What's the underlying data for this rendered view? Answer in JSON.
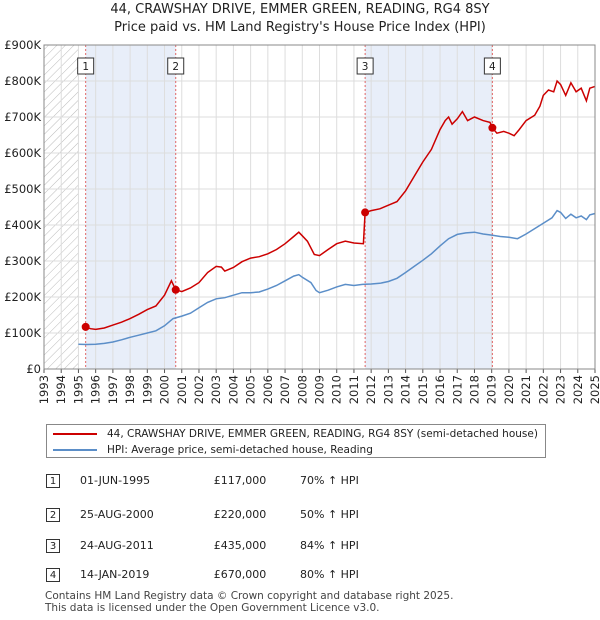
{
  "header": {
    "title": "44, CRAWSHAY DRIVE, EMMER GREEN, READING, RG4 8SY",
    "subtitle": "Price paid vs. HM Land Registry's House Price Index (HPI)"
  },
  "chart_data": {
    "type": "line",
    "title": "44, CRAWSHAY DRIVE, EMMER GREEN, READING, RG4 8SY",
    "subtitle": "Price paid vs. HM Land Registry's House Price Index (HPI)",
    "xlabel": "",
    "ylabel": "",
    "xlim": [
      1993,
      2025
    ],
    "ylim": [
      0,
      900000
    ],
    "x_ticks": [
      1993,
      1994,
      1995,
      1996,
      1997,
      1998,
      1999,
      2000,
      2001,
      2002,
      2003,
      2004,
      2005,
      2006,
      2007,
      2008,
      2009,
      2010,
      2011,
      2012,
      2013,
      2014,
      2015,
      2016,
      2017,
      2018,
      2019,
      2020,
      2021,
      2022,
      2023,
      2024,
      2025
    ],
    "y_ticks": [
      {
        "value": 0,
        "label": "£0"
      },
      {
        "value": 100000,
        "label": "£100K"
      },
      {
        "value": 200000,
        "label": "£200K"
      },
      {
        "value": 300000,
        "label": "£300K"
      },
      {
        "value": 400000,
        "label": "£400K"
      },
      {
        "value": 500000,
        "label": "£500K"
      },
      {
        "value": 600000,
        "label": "£600K"
      },
      {
        "value": 700000,
        "label": "£700K"
      },
      {
        "value": 800000,
        "label": "£800K"
      },
      {
        "value": 900000,
        "label": "£900K"
      }
    ],
    "grid": true,
    "series": [
      {
        "name": "44, CRAWSHAY DRIVE, EMMER GREEN, READING, RG4 8SY (semi-detached house)",
        "color": "#cc0000",
        "points": [
          [
            1995.42,
            117000
          ],
          [
            1995.7,
            112000
          ],
          [
            1996.0,
            110000
          ],
          [
            1996.5,
            114000
          ],
          [
            1997.0,
            122000
          ],
          [
            1997.5,
            130000
          ],
          [
            1998.0,
            140000
          ],
          [
            1998.5,
            152000
          ],
          [
            1999.0,
            165000
          ],
          [
            1999.5,
            175000
          ],
          [
            2000.0,
            205000
          ],
          [
            2000.4,
            245000
          ],
          [
            2000.65,
            220000
          ],
          [
            2001.0,
            215000
          ],
          [
            2001.5,
            225000
          ],
          [
            2002.0,
            240000
          ],
          [
            2002.5,
            268000
          ],
          [
            2003.0,
            285000
          ],
          [
            2003.3,
            283000
          ],
          [
            2003.5,
            272000
          ],
          [
            2004.0,
            282000
          ],
          [
            2004.5,
            298000
          ],
          [
            2005.0,
            308000
          ],
          [
            2005.5,
            312000
          ],
          [
            2006.0,
            320000
          ],
          [
            2006.5,
            332000
          ],
          [
            2007.0,
            348000
          ],
          [
            2007.5,
            368000
          ],
          [
            2007.8,
            380000
          ],
          [
            2008.0,
            370000
          ],
          [
            2008.3,
            355000
          ],
          [
            2008.7,
            318000
          ],
          [
            2009.0,
            315000
          ],
          [
            2009.5,
            332000
          ],
          [
            2010.0,
            348000
          ],
          [
            2010.5,
            355000
          ],
          [
            2011.0,
            350000
          ],
          [
            2011.55,
            348000
          ],
          [
            2011.65,
            435000
          ],
          [
            2012.0,
            440000
          ],
          [
            2012.5,
            445000
          ],
          [
            2013.0,
            455000
          ],
          [
            2013.5,
            465000
          ],
          [
            2014.0,
            495000
          ],
          [
            2014.5,
            535000
          ],
          [
            2015.0,
            575000
          ],
          [
            2015.5,
            610000
          ],
          [
            2016.0,
            665000
          ],
          [
            2016.3,
            690000
          ],
          [
            2016.5,
            700000
          ],
          [
            2016.7,
            680000
          ],
          [
            2017.0,
            695000
          ],
          [
            2017.3,
            715000
          ],
          [
            2017.6,
            690000
          ],
          [
            2018.0,
            700000
          ],
          [
            2018.5,
            690000
          ],
          [
            2018.9,
            685000
          ],
          [
            2019.04,
            670000
          ],
          [
            2019.3,
            655000
          ],
          [
            2019.7,
            660000
          ],
          [
            2020.0,
            655000
          ],
          [
            2020.3,
            648000
          ],
          [
            2020.6,
            665000
          ],
          [
            2021.0,
            690000
          ],
          [
            2021.5,
            705000
          ],
          [
            2021.8,
            730000
          ],
          [
            2022.0,
            760000
          ],
          [
            2022.3,
            775000
          ],
          [
            2022.6,
            770000
          ],
          [
            2022.8,
            800000
          ],
          [
            2023.0,
            790000
          ],
          [
            2023.3,
            760000
          ],
          [
            2023.6,
            795000
          ],
          [
            2023.9,
            770000
          ],
          [
            2024.2,
            780000
          ],
          [
            2024.5,
            745000
          ],
          [
            2024.7,
            780000
          ],
          [
            2025.0,
            785000
          ]
        ]
      },
      {
        "name": "HPI: Average price, semi-detached house, Reading",
        "color": "#5b8ec8",
        "points": [
          [
            1995.0,
            69000
          ],
          [
            1995.5,
            68000
          ],
          [
            1996.0,
            69000
          ],
          [
            1996.5,
            71000
          ],
          [
            1997.0,
            75000
          ],
          [
            1997.5,
            81000
          ],
          [
            1998.0,
            88000
          ],
          [
            1998.5,
            94000
          ],
          [
            1999.0,
            100000
          ],
          [
            1999.5,
            106000
          ],
          [
            2000.0,
            120000
          ],
          [
            2000.5,
            140000
          ],
          [
            2001.0,
            147000
          ],
          [
            2001.5,
            155000
          ],
          [
            2002.0,
            170000
          ],
          [
            2002.5,
            185000
          ],
          [
            2003.0,
            195000
          ],
          [
            2003.5,
            198000
          ],
          [
            2004.0,
            205000
          ],
          [
            2004.5,
            212000
          ],
          [
            2005.0,
            212000
          ],
          [
            2005.5,
            214000
          ],
          [
            2006.0,
            222000
          ],
          [
            2006.5,
            232000
          ],
          [
            2007.0,
            245000
          ],
          [
            2007.5,
            258000
          ],
          [
            2007.8,
            262000
          ],
          [
            2008.0,
            255000
          ],
          [
            2008.5,
            240000
          ],
          [
            2008.8,
            218000
          ],
          [
            2009.0,
            212000
          ],
          [
            2009.5,
            219000
          ],
          [
            2010.0,
            228000
          ],
          [
            2010.5,
            235000
          ],
          [
            2011.0,
            232000
          ],
          [
            2011.5,
            235000
          ],
          [
            2012.0,
            236000
          ],
          [
            2012.5,
            238000
          ],
          [
            2013.0,
            243000
          ],
          [
            2013.5,
            252000
          ],
          [
            2014.0,
            268000
          ],
          [
            2014.5,
            285000
          ],
          [
            2015.0,
            302000
          ],
          [
            2015.5,
            320000
          ],
          [
            2016.0,
            342000
          ],
          [
            2016.5,
            362000
          ],
          [
            2017.0,
            374000
          ],
          [
            2017.5,
            378000
          ],
          [
            2018.0,
            380000
          ],
          [
            2018.5,
            375000
          ],
          [
            2019.0,
            372000
          ],
          [
            2019.5,
            368000
          ],
          [
            2020.0,
            366000
          ],
          [
            2020.5,
            362000
          ],
          [
            2021.0,
            375000
          ],
          [
            2021.5,
            390000
          ],
          [
            2022.0,
            405000
          ],
          [
            2022.5,
            420000
          ],
          [
            2022.8,
            440000
          ],
          [
            2023.0,
            435000
          ],
          [
            2023.3,
            418000
          ],
          [
            2023.6,
            430000
          ],
          [
            2023.9,
            420000
          ],
          [
            2024.2,
            425000
          ],
          [
            2024.5,
            415000
          ],
          [
            2024.7,
            428000
          ],
          [
            2025.0,
            432000
          ]
        ]
      }
    ],
    "sales": [
      {
        "label": "1",
        "x": 1995.42,
        "price": 117000
      },
      {
        "label": "2",
        "x": 2000.65,
        "price": 220000
      },
      {
        "label": "3",
        "x": 2011.65,
        "price": 435000
      },
      {
        "label": "4",
        "x": 2019.04,
        "price": 670000
      }
    ],
    "hatched_until": 1995.0
  },
  "legend": {
    "items": [
      {
        "label": "44, CRAWSHAY DRIVE, EMMER GREEN, READING, RG4 8SY (semi-detached house)",
        "color": "#cc0000"
      },
      {
        "label": "HPI: Average price, semi-detached house, Reading",
        "color": "#5b8ec8"
      }
    ]
  },
  "transactions": [
    {
      "num": "1",
      "date": "01-JUN-1995",
      "price": "£117,000",
      "hpi": "70% ↑ HPI"
    },
    {
      "num": "2",
      "date": "25-AUG-2000",
      "price": "£220,000",
      "hpi": "50% ↑ HPI"
    },
    {
      "num": "3",
      "date": "24-AUG-2011",
      "price": "£435,000",
      "hpi": "84% ↑ HPI"
    },
    {
      "num": "4",
      "date": "14-JAN-2019",
      "price": "£670,000",
      "hpi": "80% ↑ HPI"
    }
  ],
  "footer": {
    "line1": "Contains HM Land Registry data © Crown copyright and database right 2025.",
    "line2": "This data is licensed under the Open Government Licence v3.0."
  }
}
